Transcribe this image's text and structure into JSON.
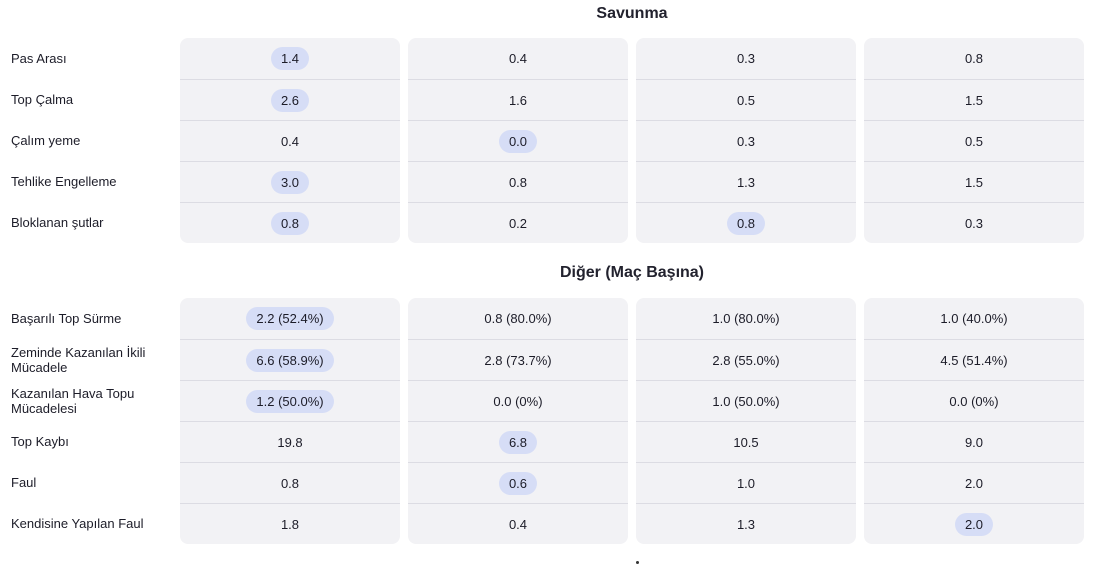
{
  "sections": [
    {
      "title": "Savunma",
      "rows": [
        {
          "label": "Pas Arası",
          "values": [
            "1.4",
            "0.4",
            "0.3",
            "0.8"
          ],
          "highlight": [
            true,
            false,
            false,
            false
          ]
        },
        {
          "label": "Top Çalma",
          "values": [
            "2.6",
            "1.6",
            "0.5",
            "1.5"
          ],
          "highlight": [
            true,
            false,
            false,
            false
          ]
        },
        {
          "label": "Çalım yeme",
          "values": [
            "0.4",
            "0.0",
            "0.3",
            "0.5"
          ],
          "highlight": [
            false,
            true,
            false,
            false
          ]
        },
        {
          "label": "Tehlike Engelleme",
          "values": [
            "3.0",
            "0.8",
            "1.3",
            "1.5"
          ],
          "highlight": [
            true,
            false,
            false,
            false
          ]
        },
        {
          "label": "Bloklanan şutlar",
          "values": [
            "0.8",
            "0.2",
            "0.8",
            "0.3"
          ],
          "highlight": [
            true,
            false,
            true,
            false
          ]
        }
      ]
    },
    {
      "title": "Diğer (Maç Başına)",
      "rows": [
        {
          "label": "Başarılı Top Sürme",
          "values": [
            "2.2 (52.4%)",
            "0.8 (80.0%)",
            "1.0 (80.0%)",
            "1.0 (40.0%)"
          ],
          "highlight": [
            true,
            false,
            false,
            false
          ]
        },
        {
          "label": "Zeminde Kazanılan İkili Mücadele",
          "values": [
            "6.6 (58.9%)",
            "2.8 (73.7%)",
            "2.8 (55.0%)",
            "4.5 (51.4%)"
          ],
          "highlight": [
            true,
            false,
            false,
            false
          ]
        },
        {
          "label": "Kazanılan Hava Topu Mücadelesi",
          "values": [
            "1.2 (50.0%)",
            "0.0 (0%)",
            "1.0 (50.0%)",
            "0.0 (0%)"
          ],
          "highlight": [
            true,
            false,
            false,
            false
          ]
        },
        {
          "label": "Top Kaybı",
          "values": [
            "19.8",
            "6.8",
            "10.5",
            "9.0"
          ],
          "highlight": [
            false,
            true,
            false,
            false
          ]
        },
        {
          "label": "Faul",
          "values": [
            "0.8",
            "0.6",
            "1.0",
            "2.0"
          ],
          "highlight": [
            false,
            true,
            false,
            false
          ]
        },
        {
          "label": "Kendisine Yapılan Faul",
          "values": [
            "1.8",
            "0.4",
            "1.3",
            "2.0"
          ],
          "highlight": [
            false,
            false,
            false,
            true
          ]
        }
      ]
    }
  ],
  "colors": {
    "card_bg": "#f2f2f5",
    "highlight_pill": "#d6ddf6",
    "divider": "#dcdce3"
  }
}
